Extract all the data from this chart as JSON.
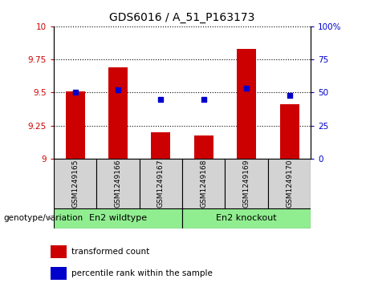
{
  "title": "GDS6016 / A_51_P163173",
  "categories": [
    "GSM1249165",
    "GSM1249166",
    "GSM1249167",
    "GSM1249168",
    "GSM1249169",
    "GSM1249170"
  ],
  "red_values": [
    9.505,
    9.69,
    9.2,
    9.175,
    9.83,
    9.41
  ],
  "blue_values": [
    50,
    52,
    45,
    45,
    53,
    48
  ],
  "ylim_left": [
    9,
    10
  ],
  "ylim_right": [
    0,
    100
  ],
  "yticks_left": [
    9,
    9.25,
    9.5,
    9.75,
    10
  ],
  "yticks_right": [
    0,
    25,
    50,
    75,
    100
  ],
  "ytick_labels_left": [
    "9",
    "9.25",
    "9.5",
    "9.75",
    "10"
  ],
  "ytick_labels_right": [
    "0",
    "25",
    "50",
    "75",
    "100%"
  ],
  "group1_label": "En2 wildtype",
  "group2_label": "En2 knockout",
  "group1_indices": [
    0,
    1,
    2
  ],
  "group2_indices": [
    3,
    4,
    5
  ],
  "group_bg_color": "#90EE90",
  "bar_color": "#CC0000",
  "dot_color": "#0000CC",
  "tick_label_color_left": "#CC0000",
  "tick_label_color_right": "#0000CC",
  "bar_width": 0.45,
  "base_value": 9,
  "legend_red_label": "transformed count",
  "legend_blue_label": "percentile rank within the sample",
  "xlabel_annotation": "genotype/variation",
  "sample_box_color": "#D3D3D3",
  "fig_bg_color": "#FFFFFF"
}
